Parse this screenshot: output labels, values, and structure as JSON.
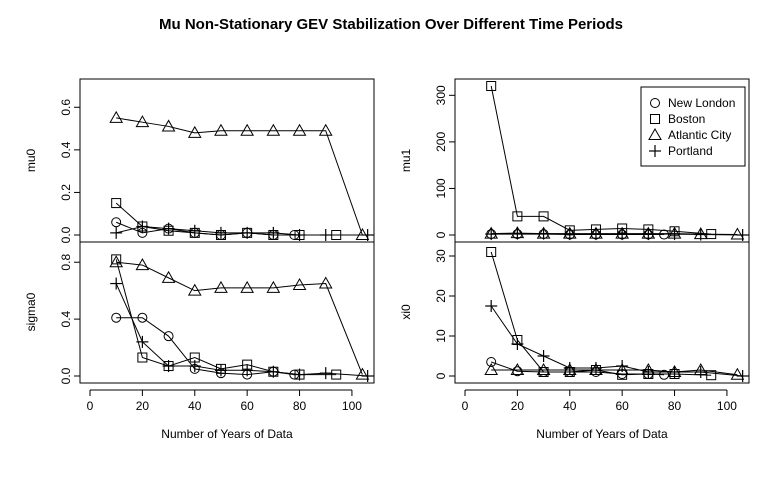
{
  "figure": {
    "title": "Mu Non-Stationary GEV Stabilization Over Different Time Periods"
  },
  "legend": {
    "placement": "top-right of mu1 panel",
    "entries": [
      {
        "name": "New London",
        "marker": "circle"
      },
      {
        "name": "Boston",
        "marker": "square"
      },
      {
        "name": "Atlantic City",
        "marker": "triangle"
      },
      {
        "name": "Portland",
        "marker": "plus"
      }
    ]
  },
  "chart_data": [
    {
      "type": "line",
      "panel": "top-left",
      "ylabel": "mu0",
      "xlabel": "",
      "xlim": [
        0,
        110
      ],
      "ylim": [
        0,
        0.7
      ],
      "x_ticks": [
        0,
        20,
        40,
        60,
        80,
        100
      ],
      "y_ticks": [
        "0.0",
        "0.2",
        "0.4",
        "0.6"
      ],
      "show_x_tick_labels": false,
      "series": [
        {
          "name": "New London",
          "marker": "circle",
          "x": [
            10,
            20,
            30,
            40,
            50,
            60,
            70,
            78
          ],
          "y": [
            0.06,
            0.01,
            0.03,
            0.01,
            0.0,
            0.01,
            0.0,
            0.0
          ]
        },
        {
          "name": "Boston",
          "marker": "square",
          "x": [
            10,
            20,
            30,
            40,
            50,
            60,
            70,
            80,
            94
          ],
          "y": [
            0.15,
            0.04,
            0.02,
            0.01,
            0.0,
            0.01,
            0.0,
            0.0,
            0.0
          ]
        },
        {
          "name": "Atlantic City",
          "marker": "triangle",
          "x": [
            10,
            20,
            30,
            40,
            50,
            60,
            70,
            80,
            90,
            104
          ],
          "y": [
            0.55,
            0.53,
            0.51,
            0.48,
            0.49,
            0.49,
            0.49,
            0.49,
            0.49,
            0.0
          ]
        },
        {
          "name": "Portland",
          "marker": "plus",
          "x": [
            10,
            20,
            30,
            40,
            50,
            60,
            70,
            80,
            90,
            106
          ],
          "y": [
            0.01,
            0.04,
            0.03,
            0.02,
            0.01,
            0.01,
            0.01,
            0.0,
            0.0,
            0.0
          ]
        }
      ]
    },
    {
      "type": "line",
      "panel": "top-right",
      "ylabel": "mu1",
      "xlabel": "",
      "xlim": [
        0,
        110
      ],
      "ylim": [
        0,
        320
      ],
      "x_ticks": [
        0,
        20,
        40,
        60,
        80,
        100
      ],
      "y_ticks": [
        "0",
        "100",
        "200",
        "300"
      ],
      "show_x_tick_labels": false,
      "series": [
        {
          "name": "New London",
          "marker": "circle",
          "x": [
            10,
            20,
            30,
            40,
            50,
            60,
            70,
            76
          ],
          "y": [
            2,
            2,
            2,
            1,
            1,
            1,
            1,
            1
          ]
        },
        {
          "name": "Boston",
          "marker": "square",
          "x": [
            10,
            20,
            30,
            40,
            50,
            60,
            70,
            80,
            94
          ],
          "y": [
            320,
            40,
            40,
            10,
            12,
            14,
            12,
            8,
            2
          ]
        },
        {
          "name": "Atlantic City",
          "marker": "triangle",
          "x": [
            10,
            20,
            30,
            40,
            50,
            60,
            70,
            80,
            90,
            104
          ],
          "y": [
            3,
            4,
            3,
            3,
            3,
            3,
            3,
            3,
            2,
            1
          ]
        },
        {
          "name": "Portland",
          "marker": "plus",
          "x": [
            10,
            20,
            30,
            40,
            50,
            60,
            70,
            80,
            90,
            106
          ],
          "y": [
            2,
            3,
            3,
            2,
            2,
            2,
            2,
            2,
            1,
            0
          ]
        }
      ]
    },
    {
      "type": "line",
      "panel": "bottom-left",
      "ylabel": "sigma0",
      "xlabel": "Number of Years of Data",
      "xlim": [
        0,
        110
      ],
      "ylim": [
        0,
        0.9
      ],
      "x_ticks": [
        0,
        20,
        40,
        60,
        80,
        100
      ],
      "x_tick_labels": [
        "0",
        "20",
        "40",
        "60",
        "80",
        "100"
      ],
      "y_ticks": [
        "0.0",
        "0.4",
        "0.8"
      ],
      "show_x_tick_labels": true,
      "series": [
        {
          "name": "New London",
          "marker": "circle",
          "x": [
            10,
            20,
            30,
            40,
            50,
            60,
            70,
            78
          ],
          "y": [
            0.41,
            0.41,
            0.28,
            0.05,
            0.02,
            0.01,
            0.03,
            0.01
          ]
        },
        {
          "name": "Boston",
          "marker": "square",
          "x": [
            10,
            20,
            30,
            40,
            50,
            60,
            70,
            80,
            94
          ],
          "y": [
            0.82,
            0.13,
            0.07,
            0.13,
            0.05,
            0.08,
            0.03,
            0.01,
            0.01
          ]
        },
        {
          "name": "Atlantic City",
          "marker": "triangle",
          "x": [
            10,
            20,
            30,
            40,
            50,
            60,
            70,
            80,
            90,
            104
          ],
          "y": [
            0.8,
            0.78,
            0.69,
            0.6,
            0.62,
            0.62,
            0.62,
            0.64,
            0.65,
            0.01
          ]
        },
        {
          "name": "Portland",
          "marker": "plus",
          "x": [
            10,
            20,
            30,
            40,
            50,
            60,
            70,
            80,
            90,
            106
          ],
          "y": [
            0.65,
            0.24,
            0.07,
            0.07,
            0.04,
            0.04,
            0.03,
            0.01,
            0.02,
            0.0
          ]
        }
      ]
    },
    {
      "type": "line",
      "panel": "bottom-right",
      "ylabel": "xi0",
      "xlabel": "Number of Years of Data",
      "xlim": [
        0,
        110
      ],
      "ylim": [
        0,
        32
      ],
      "x_ticks": [
        0,
        20,
        40,
        60,
        80,
        100
      ],
      "x_tick_labels": [
        "0",
        "20",
        "40",
        "60",
        "80",
        "100"
      ],
      "y_ticks": [
        "0",
        "10",
        "20",
        "30"
      ],
      "show_x_tick_labels": true,
      "series": [
        {
          "name": "New London",
          "marker": "circle",
          "x": [
            10,
            20,
            30,
            40,
            50,
            60,
            70,
            76
          ],
          "y": [
            3.5,
            1.2,
            1.0,
            1.0,
            1.0,
            0.5,
            0.5,
            0.3
          ]
        },
        {
          "name": "Boston",
          "marker": "square",
          "x": [
            10,
            20,
            30,
            40,
            50,
            60,
            70,
            80,
            94
          ],
          "y": [
            31,
            9,
            1,
            1,
            1.5,
            0.3,
            0.5,
            0.5,
            0.2
          ]
        },
        {
          "name": "Atlantic City",
          "marker": "triangle",
          "x": [
            10,
            20,
            30,
            40,
            50,
            60,
            70,
            80,
            90,
            104
          ],
          "y": [
            1.5,
            1.5,
            1.5,
            1.5,
            1.5,
            1.5,
            1.5,
            1.0,
            1.5,
            0.3
          ]
        },
        {
          "name": "Portland",
          "marker": "plus",
          "x": [
            10,
            20,
            30,
            40,
            50,
            60,
            70,
            80,
            90,
            106
          ],
          "y": [
            17.5,
            8,
            5,
            2,
            2,
            2.5,
            1,
            1,
            1,
            0
          ]
        }
      ]
    }
  ]
}
